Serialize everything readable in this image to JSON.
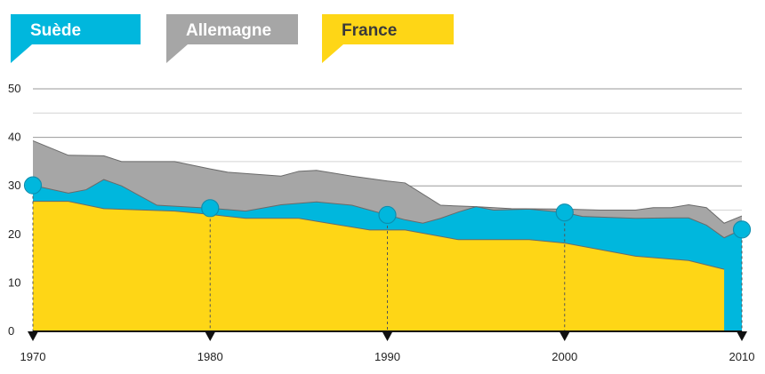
{
  "chart_data": {
    "type": "area",
    "title": "",
    "xlabel": "",
    "ylabel": "",
    "xlim": [
      1970,
      2010
    ],
    "ylim": [
      0,
      50
    ],
    "y_ticks": [
      0,
      10,
      20,
      30,
      40,
      50
    ],
    "x_ticks": [
      1970,
      1980,
      1990,
      2000,
      2010
    ],
    "x_tick_labels": [
      "1970",
      "1980",
      "1990",
      "2000",
      "2010"
    ],
    "grid": true,
    "legend_position": "top-left",
    "series": [
      {
        "name": "Allemagne",
        "color": "#a6a6a6",
        "x": [
          1970,
          1972,
          1974,
          1975,
          1978,
          1980,
          1981,
          1984,
          1985,
          1986,
          1988,
          1990,
          1991,
          1993,
          1995,
          1997,
          2000,
          2002,
          2004,
          2005,
          2006,
          2007,
          2008,
          2009,
          2010
        ],
        "values": [
          39.3,
          36.3,
          36.2,
          35.0,
          35.0,
          33.5,
          32.8,
          32.0,
          33.0,
          33.2,
          32.0,
          31.0,
          30.6,
          26.0,
          25.7,
          25.3,
          25.2,
          25.0,
          25.0,
          25.5,
          25.5,
          26.1,
          25.5,
          22.3,
          23.8
        ]
      },
      {
        "name": "Suède",
        "color": "#00b7dd",
        "x": [
          1970,
          1972,
          1973,
          1974,
          1975,
          1977,
          1980,
          1982,
          1984,
          1986,
          1988,
          1990,
          1991,
          1992,
          1993,
          1994,
          1995,
          1996,
          1998,
          2000,
          2001,
          2004,
          2006,
          2007,
          2008,
          2009,
          2010
        ],
        "values": [
          30.1,
          28.5,
          29.2,
          31.3,
          30.0,
          26.0,
          25.4,
          24.8,
          26.1,
          26.7,
          26.0,
          24.0,
          23.0,
          22.3,
          23.3,
          24.6,
          25.7,
          25.0,
          25.2,
          24.5,
          23.7,
          23.3,
          23.4,
          23.4,
          21.9,
          19.3,
          21.0
        ]
      },
      {
        "name": "France",
        "color": "#fed616",
        "x": [
          1970,
          1972,
          1974,
          1978,
          1980,
          1982,
          1985,
          1987,
          1989,
          1991,
          1994,
          1998,
          2000,
          2004,
          2007,
          2009
        ],
        "values": [
          26.8,
          26.8,
          25.3,
          24.8,
          24.1,
          23.3,
          23.3,
          22.1,
          20.9,
          20.9,
          18.9,
          18.9,
          18.2,
          15.5,
          14.6,
          12.8
        ]
      }
    ],
    "highlight_points": {
      "series": "Suède",
      "x": [
        1970,
        1980,
        1990,
        2000,
        2010
      ],
      "values": [
        30.1,
        25.4,
        24.0,
        24.5,
        21.0
      ]
    }
  },
  "legend": {
    "items": [
      {
        "label": "Suède",
        "bg": "#00b7dd",
        "text_color": "#ffffff"
      },
      {
        "label": "Allemagne",
        "bg": "#a6a6a6",
        "text_color": "#ffffff"
      },
      {
        "label": "France",
        "bg": "#fed616",
        "text_color": "#3a3a3a"
      }
    ]
  }
}
